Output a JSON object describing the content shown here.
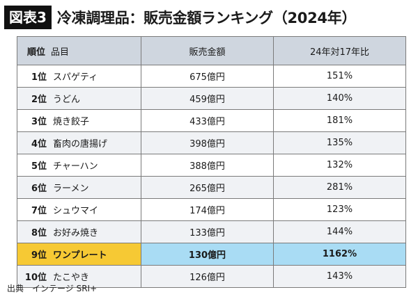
{
  "figure_label": "図表3",
  "title": "冷凍調理品：販売金額ランキング（2024年）",
  "table": {
    "headers": {
      "rank": "順位",
      "item": "品目",
      "sales": "販売金額",
      "ratio": "24年対17年比"
    },
    "rows": [
      {
        "rank": "1位",
        "item": "スパゲティ",
        "sales": "675億円",
        "ratio": "151%"
      },
      {
        "rank": "2位",
        "item": "うどん",
        "sales": "459億円",
        "ratio": "140%"
      },
      {
        "rank": "3位",
        "item": "焼き餃子",
        "sales": "433億円",
        "ratio": "181%"
      },
      {
        "rank": "4位",
        "item": "畜肉の唐揚げ",
        "sales": "398億円",
        "ratio": "135%"
      },
      {
        "rank": "5位",
        "item": "チャーハン",
        "sales": "388億円",
        "ratio": "132%"
      },
      {
        "rank": "6位",
        "item": "ラーメン",
        "sales": "265億円",
        "ratio": "281%"
      },
      {
        "rank": "7位",
        "item": "シュウマイ",
        "sales": "174億円",
        "ratio": "123%"
      },
      {
        "rank": "8位",
        "item": "お好み焼き",
        "sales": "133億円",
        "ratio": "144%"
      },
      {
        "rank": "9位",
        "item": "ワンプレート",
        "sales": "130億円",
        "ratio": "1162%"
      },
      {
        "rank": "10位",
        "item": "たこやき",
        "sales": "126億円",
        "ratio": "143%"
      }
    ],
    "highlight_row": 9,
    "highlight_colors": {
      "rank_item": "#f6c934",
      "values": "#a9dcf4"
    }
  },
  "source": "出典　インテージ SRI+"
}
